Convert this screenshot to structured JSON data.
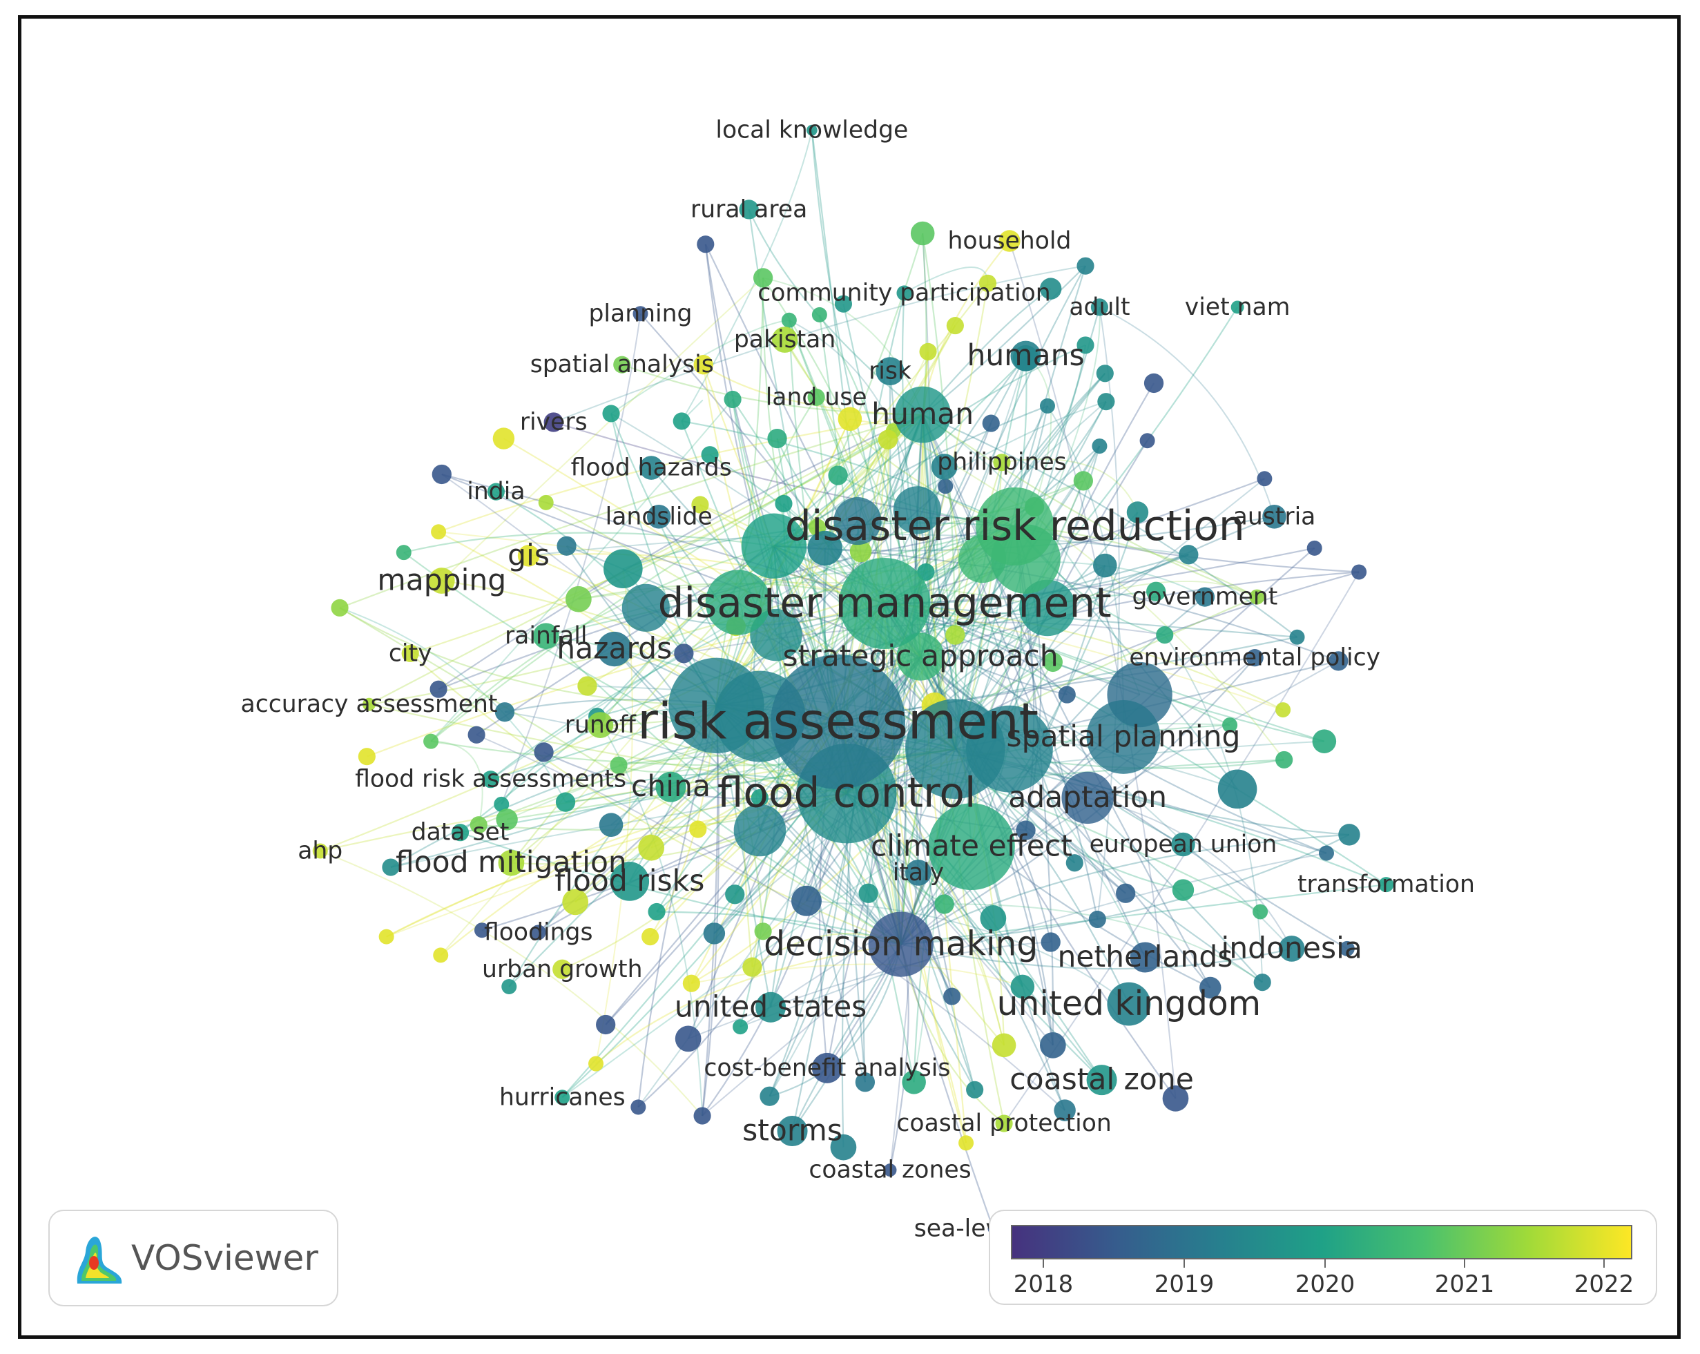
{
  "app": {
    "name": "VOSviewer"
  },
  "colorbar": {
    "gradient": [
      "#46327e",
      "#365c8d",
      "#277f8e",
      "#1fa187",
      "#4ac16d",
      "#a0da39",
      "#fde725"
    ],
    "ticks": [
      "2018",
      "2019",
      "2020",
      "2021",
      "2022"
    ]
  },
  "labels": {
    "risk_assessment": "risk assessment",
    "flood_control": "flood control",
    "disaster_management": "disaster management",
    "disaster_risk_reduction": "disaster risk reduction",
    "decision_making": "decision making",
    "strategic_approach": "strategic approach",
    "human": "human",
    "humans": "humans",
    "adaptation": "adaptation",
    "spatial_planning": "spatial planning",
    "united_kingdom": "united kingdom",
    "hazards": "hazards",
    "flood_risks": "flood risks",
    "climate_effect": "climate effect",
    "local_knowledge": "local knowledge",
    "rural_area": "rural area",
    "household": "household",
    "community_participation": "community participation",
    "adult": "adult",
    "viet_nam": "viet nam",
    "planning": "planning",
    "pakistan": "pakistan",
    "spatial_analysis": "spatial analysis",
    "risk": "risk",
    "land_use": "land use",
    "rivers": "rivers",
    "flood_hazards": "flood hazards",
    "philippines": "philippines",
    "india": "india",
    "landslide": "landslide",
    "austria": "austria",
    "gis": "gis",
    "mapping": "mapping",
    "government": "government",
    "rainfall": "rainfall",
    "city": "city",
    "environmental_policy": "environmental policy",
    "accuracy_assessment": "accuracy assessment",
    "runoff": "runoff",
    "flood_risk_assessments": "flood risk assessments",
    "china": "china",
    "data_set": "data set",
    "european_union": "european union",
    "ahp": "ahp",
    "flood_mitigation": "flood mitigation",
    "italy": "italy",
    "transformation": "transformation",
    "floodings": "floodings",
    "netherlands": "netherlands",
    "indonesia": "indonesia",
    "urban_growth": "urban growth",
    "united_states": "united states",
    "cost_benefit_analysis": "cost-benefit analysis",
    "coastal_zone": "coastal zone",
    "hurricanes": "hurricanes",
    "storms": "storms",
    "coastal_protection": "coastal protection",
    "coastal_zones": "coastal zones",
    "sea_level_rise": "sea-level rise"
  }
}
